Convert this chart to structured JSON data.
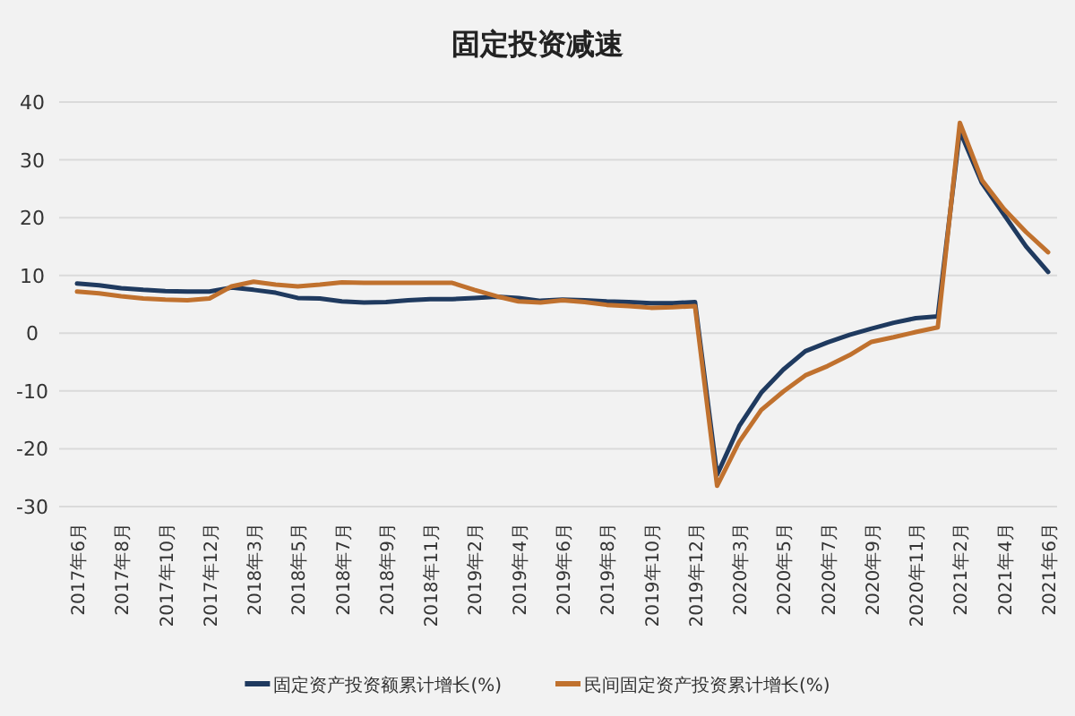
{
  "chart_data": {
    "type": "line",
    "title": "固定投资减速",
    "categories": [
      "2017年6月",
      null,
      "2017年8月",
      null,
      "2017年10月",
      null,
      "2017年12月",
      null,
      "2018年3月",
      null,
      "2018年5月",
      null,
      "2018年7月",
      null,
      "2018年9月",
      null,
      "2018年11月",
      null,
      "2019年2月",
      null,
      "2019年4月",
      null,
      "2019年6月",
      null,
      "2019年8月",
      null,
      "2019年10月",
      null,
      "2019年12月",
      null,
      "2020年3月",
      null,
      "2020年5月",
      null,
      "2020年7月",
      null,
      "2020年9月",
      null,
      "2020年11月",
      null,
      "2021年2月",
      null,
      "2021年4月",
      null,
      "2021年6月"
    ],
    "series": [
      {
        "name": "固定资产投资额累计增长(%)",
        "color": "#1f3a5f",
        "values": [
          8.6,
          8.3,
          7.8,
          7.5,
          7.3,
          7.2,
          7.2,
          7.9,
          7.5,
          7.0,
          6.1,
          6.0,
          5.5,
          5.3,
          5.4,
          5.7,
          5.9,
          5.9,
          6.1,
          6.3,
          6.1,
          5.6,
          5.8,
          5.7,
          5.5,
          5.4,
          5.2,
          5.2,
          5.4,
          -24.5,
          -16.1,
          -10.3,
          -6.3,
          -3.1,
          -1.6,
          -0.3,
          0.8,
          1.8,
          2.6,
          2.9,
          35,
          26,
          20.5,
          15,
          10.6
        ]
      },
      {
        "name": "民间固定资产投资累计增长(%)",
        "color": "#c0712e",
        "values": [
          7.2,
          6.9,
          6.4,
          6.0,
          5.8,
          5.7,
          6.0,
          8.1,
          8.9,
          8.4,
          8.1,
          8.4,
          8.8,
          8.7,
          8.7,
          8.7,
          8.7,
          8.7,
          7.5,
          6.4,
          5.5,
          5.3,
          5.7,
          5.4,
          4.9,
          4.7,
          4.4,
          4.5,
          4.7,
          -26.4,
          -18.8,
          -13.3,
          -10.1,
          -7.3,
          -5.7,
          -3.8,
          -1.5,
          -0.7,
          0.2,
          1.0,
          36.4,
          26.5,
          21.5,
          17.5,
          14
        ]
      }
    ],
    "ylim": [
      -30,
      40
    ],
    "yticks": [
      -30,
      -20,
      -10,
      0,
      10,
      20,
      30,
      40
    ],
    "grid": "y",
    "legend": "bottom"
  }
}
